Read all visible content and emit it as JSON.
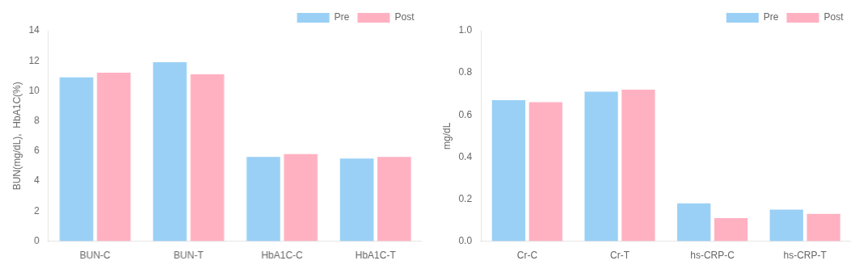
{
  "chart_data": [
    {
      "type": "bar",
      "y_label": "BUN(mg/dL),  HbA1C(%)",
      "categories": [
        "BUN-C",
        "BUN-T",
        "HbA1C-C",
        "HbA1C-T"
      ],
      "series": [
        {
          "name": "Pre",
          "values": [
            10.9,
            11.9,
            5.6,
            5.5
          ]
        },
        {
          "name": "Post",
          "values": [
            11.2,
            11.1,
            5.8,
            5.6
          ]
        }
      ],
      "ylim": [
        0,
        14
      ],
      "yticks": [
        0,
        2,
        4,
        6,
        8,
        10,
        12,
        14
      ],
      "grid": false,
      "legend": "upper right"
    },
    {
      "type": "bar",
      "y_label": "mg/dL",
      "categories": [
        "Cr-C",
        "Cr-T",
        "hs-CRP-C",
        "hs-CRP-T"
      ],
      "series": [
        {
          "name": "Pre",
          "values": [
            0.67,
            0.71,
            0.18,
            0.15
          ]
        },
        {
          "name": "Post",
          "values": [
            0.66,
            0.72,
            0.11,
            0.13
          ]
        }
      ],
      "ylim": [
        0,
        1.0
      ],
      "yticks": [
        {
          "value": 0,
          "label": "0.0"
        },
        0.2,
        0.4,
        0.6,
        0.8,
        {
          "value": 1.0,
          "label": "1.0"
        }
      ],
      "grid": false,
      "legend": "upper right"
    }
  ]
}
